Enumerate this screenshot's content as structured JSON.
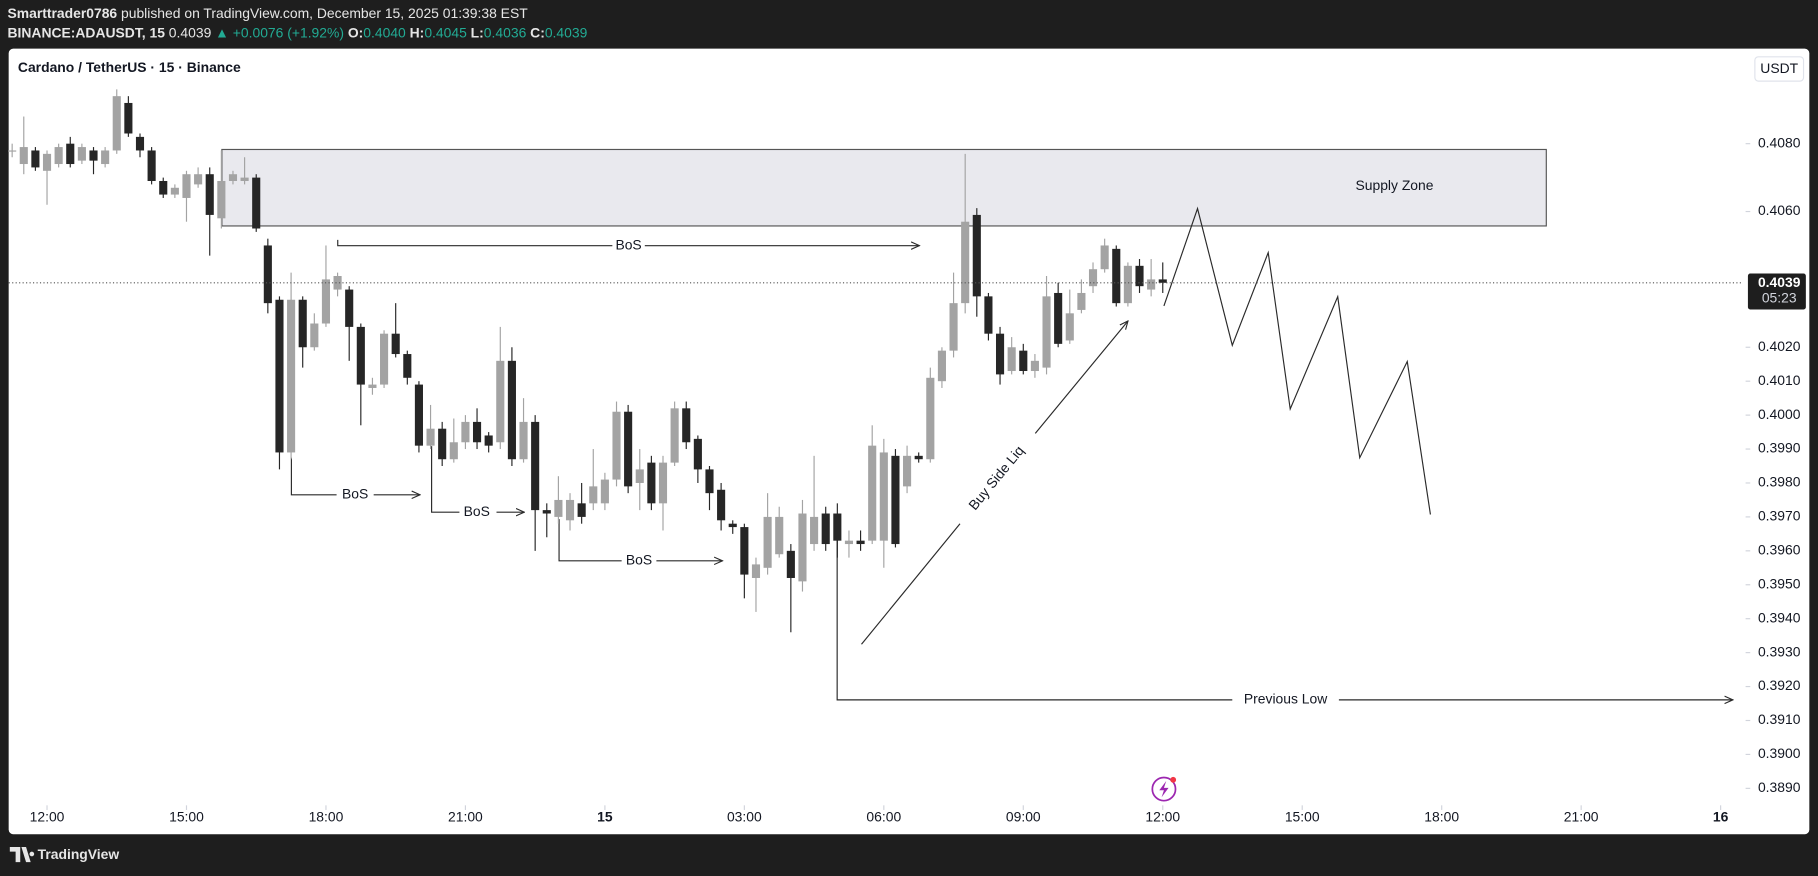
{
  "header": {
    "author": "Smarttrader0786",
    "published": "published on TradingView.com, December 15, 2025 01:39:38 EST",
    "symbol": "BINANCE:ADAUSDT, 15",
    "price": "0.4039",
    "change": "▲ +0.0076 (+1.92%)",
    "ohlc": [
      {
        "label": "O:",
        "value": "0.4040"
      },
      {
        "label": "H:",
        "value": "0.4045"
      },
      {
        "label": "L:",
        "value": "0.4036"
      },
      {
        "label": "C:",
        "value": "0.4039"
      }
    ]
  },
  "footer": {
    "brand": "TradingView"
  },
  "chart_data": {
    "type": "candlestick",
    "title": "Cardano / TetherUS · 15 · Binance",
    "unit": "USDT",
    "up_color": "#a3a3a3",
    "down_color": "#262626",
    "last_price": 0.4039,
    "countdown": "05:23",
    "annotations": [
      "Supply Zone",
      "BoS",
      "BoS",
      "BoS",
      "BoS",
      "Buy Side Liq",
      "Previous Low"
    ],
    "xlim": [
      -0.3,
      148.75
    ],
    "ylim": [
      0.3885,
      0.4108
    ],
    "xticks": [
      {
        "value": 3,
        "label": "12:00"
      },
      {
        "value": 15,
        "label": "15:00"
      },
      {
        "value": 27,
        "label": "18:00"
      },
      {
        "value": 39,
        "label": "21:00"
      },
      {
        "value": 51,
        "label": "15"
      },
      {
        "value": 63,
        "label": "03:00"
      },
      {
        "value": 75,
        "label": "06:00"
      },
      {
        "value": 87,
        "label": "09:00"
      },
      {
        "value": 99,
        "label": "12:00"
      },
      {
        "value": 111,
        "label": "15:00"
      },
      {
        "value": 123,
        "label": "18:00"
      },
      {
        "value": 135,
        "label": "21:00"
      },
      {
        "value": 147,
        "label": "16"
      }
    ],
    "yticks": [
      {
        "value": 0.408,
        "label": "0.4080"
      },
      {
        "value": 0.406,
        "label": "0.4060"
      },
      {
        "value": 0.402,
        "label": "0.4020"
      },
      {
        "value": 0.401,
        "label": "0.4010"
      },
      {
        "value": 0.4,
        "label": "0.4000"
      },
      {
        "value": 0.399,
        "label": "0.3990"
      },
      {
        "value": 0.398,
        "label": "0.3980"
      },
      {
        "value": 0.397,
        "label": "0.3970"
      },
      {
        "value": 0.396,
        "label": "0.3960"
      },
      {
        "value": 0.395,
        "label": "0.3950"
      },
      {
        "value": 0.394,
        "label": "0.3940"
      },
      {
        "value": 0.393,
        "label": "0.3930"
      },
      {
        "value": 0.392,
        "label": "0.3920"
      },
      {
        "value": 0.391,
        "label": "0.3910"
      },
      {
        "value": 0.39,
        "label": "0.3900"
      },
      {
        "value": 0.389,
        "label": "0.3890"
      }
    ],
    "x": [
      0,
      1,
      2,
      3,
      4,
      5,
      6,
      7,
      8,
      9,
      10,
      11,
      12,
      13,
      14,
      15,
      16,
      17,
      18,
      19,
      20,
      21,
      22,
      23,
      24,
      25,
      26,
      27,
      28,
      29,
      30,
      31,
      32,
      33,
      34,
      35,
      36,
      37,
      38,
      39,
      40,
      41,
      42,
      43,
      44,
      45,
      46,
      47,
      48,
      49,
      50,
      51,
      52,
      53,
      54,
      55,
      56,
      57,
      58,
      59,
      60,
      61,
      62,
      63,
      64,
      65,
      66,
      67,
      68,
      69,
      70,
      71,
      72,
      73,
      74,
      75,
      76,
      77,
      78,
      79,
      80,
      81,
      82,
      83,
      84,
      85,
      86,
      87,
      88,
      89,
      90,
      91,
      92,
      93,
      94,
      95,
      96,
      97,
      98,
      99
    ],
    "open": [
      0.4078,
      0.4074,
      0.4078,
      0.4072,
      0.4074,
      0.408,
      0.4075,
      0.4078,
      0.4074,
      0.4078,
      0.4092,
      0.4082,
      0.4078,
      0.4069,
      0.4065,
      0.4064,
      0.4068,
      0.4071,
      0.4058,
      0.4069,
      0.4069,
      0.407,
      0.405,
      0.4034,
      0.3989,
      0.4034,
      0.402,
      0.4027,
      0.4037,
      0.4037,
      0.4026,
      0.4008,
      0.4009,
      0.4024,
      0.4018,
      0.4009,
      0.3991,
      0.3996,
      0.3987,
      0.3992,
      0.3998,
      0.3994,
      0.3992,
      0.4016,
      0.3987,
      0.3998,
      0.3972,
      0.397,
      0.3969,
      0.3974,
      0.3974,
      0.3974,
      0.3981,
      0.4001,
      0.398,
      0.3986,
      0.3974,
      0.3986,
      0.4002,
      0.3993,
      0.3984,
      0.3978,
      0.3968,
      0.3967,
      0.3952,
      0.3955,
      0.3959,
      0.396,
      0.3951,
      0.3962,
      0.3971,
      0.3971,
      0.3962,
      0.3963,
      0.3963,
      0.3963,
      0.3988,
      0.3979,
      0.3988,
      0.3987,
      0.401,
      0.4019,
      0.4033,
      0.4059,
      0.4035,
      0.4024,
      0.4013,
      0.4019,
      0.4013,
      0.4014,
      0.4036,
      0.4022,
      0.4031,
      0.4038,
      0.4043,
      0.4049,
      0.4033,
      0.4044,
      0.4037,
      0.404
    ],
    "high": [
      0.408,
      0.4088,
      0.4079,
      0.4078,
      0.408,
      0.4082,
      0.408,
      0.4079,
      0.4079,
      0.4096,
      0.4094,
      0.4083,
      0.4079,
      0.407,
      0.4068,
      0.4072,
      0.4073,
      0.4073,
      0.4078,
      0.4072,
      0.4076,
      0.4071,
      0.4052,
      0.4035,
      0.4042,
      0.4035,
      0.403,
      0.405,
      0.4042,
      0.4038,
      0.4027,
      0.4011,
      0.4025,
      0.4033,
      0.4019,
      0.401,
      0.4003,
      0.3998,
      0.3999,
      0.4,
      0.4002,
      0.3995,
      0.4026,
      0.402,
      0.4005,
      0.4,
      0.3974,
      0.3982,
      0.3977,
      0.398,
      0.399,
      0.3983,
      0.4004,
      0.4003,
      0.399,
      0.3988,
      0.3988,
      0.4004,
      0.4004,
      0.3994,
      0.3985,
      0.398,
      0.3969,
      0.3968,
      0.3958,
      0.3977,
      0.3973,
      0.3962,
      0.3975,
      0.3988,
      0.3973,
      0.3974,
      0.3966,
      0.3966,
      0.3997,
      0.3993,
      0.399,
      0.3991,
      0.3989,
      0.4014,
      0.402,
      0.4042,
      0.4077,
      0.4061,
      0.4036,
      0.4026,
      0.4023,
      0.4021,
      0.4018,
      0.4041,
      0.4039,
      0.4037,
      0.404,
      0.4045,
      0.4052,
      0.405,
      0.4045,
      0.4046,
      0.4046,
      0.4045
    ],
    "low": [
      0.4076,
      0.4071,
      0.4072,
      0.4062,
      0.4073,
      0.4073,
      0.4074,
      0.4071,
      0.4073,
      0.4077,
      0.4082,
      0.4076,
      0.4068,
      0.4064,
      0.4064,
      0.4057,
      0.4067,
      0.4047,
      0.4055,
      0.4068,
      0.4068,
      0.4054,
      0.403,
      0.3984,
      0.3987,
      0.4014,
      0.4019,
      0.4026,
      0.4035,
      0.4016,
      0.3997,
      0.4006,
      0.4008,
      0.4017,
      0.4009,
      0.3989,
      0.399,
      0.3985,
      0.3986,
      0.399,
      0.399,
      0.3989,
      0.399,
      0.3985,
      0.3986,
      0.396,
      0.3964,
      0.3968,
      0.3966,
      0.3968,
      0.3972,
      0.3972,
      0.3979,
      0.3977,
      0.3972,
      0.3972,
      0.3966,
      0.3985,
      0.399,
      0.398,
      0.3972,
      0.3966,
      0.3965,
      0.3946,
      0.3942,
      0.3953,
      0.3958,
      0.3936,
      0.3948,
      0.396,
      0.396,
      0.3958,
      0.3958,
      0.396,
      0.3962,
      0.3955,
      0.3961,
      0.3977,
      0.3986,
      0.3986,
      0.4008,
      0.4017,
      0.403,
      0.4029,
      0.4022,
      0.4009,
      0.4012,
      0.4012,
      0.4011,
      0.4012,
      0.402,
      0.4021,
      0.403,
      0.4036,
      0.4042,
      0.4032,
      0.4032,
      0.4036,
      0.4035,
      0.4036
    ],
    "close": [
      0.4078,
      0.4079,
      0.4073,
      0.4077,
      0.4079,
      0.4074,
      0.4079,
      0.4075,
      0.4078,
      0.4094,
      0.4083,
      0.4078,
      0.4069,
      0.4065,
      0.4067,
      0.4071,
      0.4071,
      0.4059,
      0.4069,
      0.4071,
      0.407,
      0.4055,
      0.4033,
      0.3989,
      0.4034,
      0.402,
      0.4027,
      0.404,
      0.4041,
      0.4026,
      0.4009,
      0.4009,
      0.4024,
      0.4018,
      0.4011,
      0.3991,
      0.3996,
      0.3987,
      0.3992,
      0.3998,
      0.3992,
      0.3991,
      0.4016,
      0.3987,
      0.3998,
      0.3972,
      0.3971,
      0.3975,
      0.3975,
      0.397,
      0.3979,
      0.3981,
      0.4001,
      0.3979,
      0.3984,
      0.3974,
      0.3986,
      0.4002,
      0.3992,
      0.3984,
      0.3977,
      0.3969,
      0.3967,
      0.3953,
      0.3956,
      0.397,
      0.397,
      0.3952,
      0.3971,
      0.397,
      0.3962,
      0.3963,
      0.3963,
      0.3962,
      0.3991,
      0.3989,
      0.3962,
      0.3988,
      0.3987,
      0.4011,
      0.4019,
      0.4033,
      0.4057,
      0.4035,
      0.4024,
      0.4012,
      0.402,
      0.4013,
      0.4016,
      0.4035,
      0.4021,
      0.403,
      0.4036,
      0.4043,
      0.405,
      0.4033,
      0.4044,
      0.4038,
      0.404,
      0.4039
    ]
  }
}
